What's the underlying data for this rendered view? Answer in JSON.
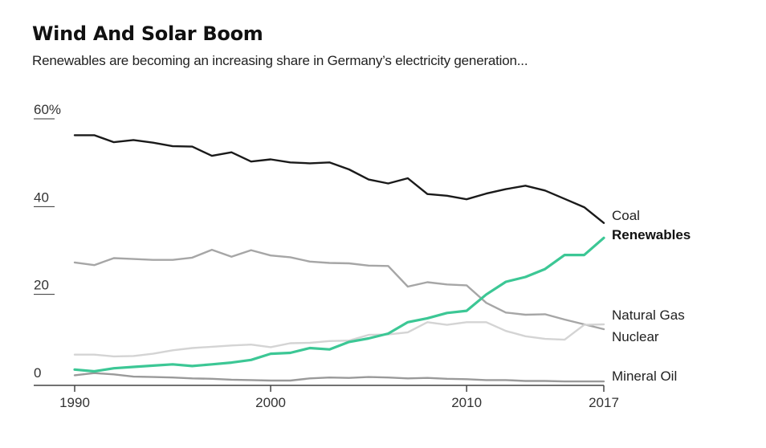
{
  "title": "Wind And Solar Boom",
  "subtitle": "Renewables are becoming an increasing share in Germany’s electricity generation...",
  "chart_data": {
    "type": "line",
    "xlim": [
      1990,
      2017
    ],
    "ylim": [
      0,
      60
    ],
    "x_ticks": [
      1990,
      2000,
      2010,
      2017
    ],
    "x_tick_labels": [
      "1990",
      "2000",
      "2010",
      "2017"
    ],
    "y_ticks": [
      0,
      20,
      40,
      60
    ],
    "y_tick_labels": [
      "0",
      "20",
      "40",
      "60%"
    ],
    "grid": false,
    "legend": "direct labels at line ends (right)",
    "x": [
      1990,
      1991,
      1992,
      1993,
      1994,
      1995,
      1996,
      1997,
      1998,
      1999,
      2000,
      2001,
      2002,
      2003,
      2004,
      2005,
      2006,
      2007,
      2008,
      2009,
      2010,
      2011,
      2012,
      2013,
      2014,
      2015,
      2016,
      2017
    ],
    "series": [
      {
        "name": "Coal",
        "color": "#1a1a1a",
        "bold": false,
        "values": [
          57.0,
          57.0,
          55.4,
          55.9,
          55.3,
          54.5,
          54.4,
          52.3,
          53.1,
          51.0,
          51.5,
          50.8,
          50.6,
          50.8,
          49.2,
          46.9,
          46.0,
          47.2,
          43.6,
          43.2,
          42.4,
          43.7,
          44.7,
          45.5,
          44.4,
          42.5,
          40.6,
          37.0
        ]
      },
      {
        "name": "Renewables",
        "color": "#3cc795",
        "bold": true,
        "values": [
          3.6,
          3.2,
          3.9,
          4.2,
          4.5,
          4.8,
          4.4,
          4.8,
          5.2,
          5.8,
          7.2,
          7.4,
          8.5,
          8.2,
          9.9,
          10.7,
          11.8,
          14.4,
          15.3,
          16.5,
          17.0,
          20.7,
          23.6,
          24.7,
          26.5,
          29.7,
          29.7,
          33.6
        ]
      },
      {
        "name": "Natural Gas",
        "color": "#a6a6a6",
        "bold": false,
        "values": [
          28.0,
          27.4,
          29.0,
          28.8,
          28.6,
          28.6,
          29.1,
          30.9,
          29.3,
          30.8,
          29.6,
          29.2,
          28.2,
          27.9,
          27.8,
          27.3,
          27.2,
          22.5,
          23.5,
          23.0,
          22.8,
          18.8,
          16.6,
          16.1,
          16.2,
          15.0,
          13.9,
          12.8
        ]
      },
      {
        "name": "Nuclear",
        "color": "#d4d4d4",
        "bold": false,
        "values": [
          7.0,
          7.0,
          6.6,
          6.7,
          7.2,
          8.0,
          8.5,
          8.8,
          9.1,
          9.3,
          8.7,
          9.6,
          9.7,
          10.1,
          10.2,
          11.5,
          11.6,
          12.1,
          14.4,
          13.8,
          14.4,
          14.4,
          12.4,
          11.2,
          10.6,
          10.4,
          13.8,
          13.9
        ]
      },
      {
        "name": "Mineral Oil",
        "color": "#9a9a9a",
        "bold": false,
        "values": [
          2.3,
          2.8,
          2.5,
          2.0,
          1.9,
          1.8,
          1.6,
          1.5,
          1.3,
          1.2,
          1.1,
          1.1,
          1.6,
          1.8,
          1.7,
          1.9,
          1.8,
          1.6,
          1.7,
          1.5,
          1.4,
          1.2,
          1.2,
          1.0,
          1.0,
          0.9,
          0.9,
          0.9
        ]
      }
    ],
    "end_labels": [
      "Coal",
      "Renewables",
      "Natural Gas",
      "Nuclear",
      "Mineral Oil"
    ]
  }
}
